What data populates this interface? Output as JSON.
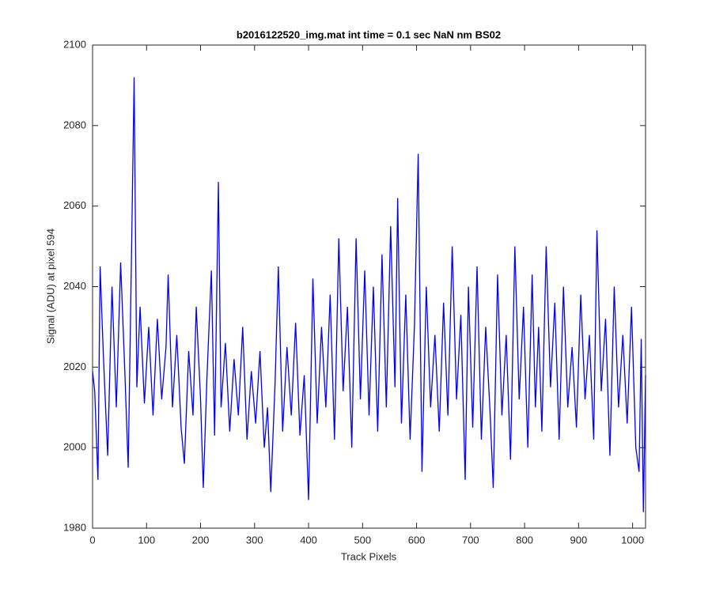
{
  "chart_data": {
    "type": "line",
    "title": "b2016122520_img.mat int time = 0.1 sec  NaN nm BS02",
    "xlabel": "Track Pixels",
    "ylabel": "Signal (ADU) at pixel 594",
    "xlim": [
      0,
      1024
    ],
    "ylim": [
      1980,
      2100
    ],
    "xticks": [
      0,
      100,
      200,
      300,
      400,
      500,
      600,
      700,
      800,
      900,
      1000
    ],
    "yticks": [
      1980,
      2000,
      2020,
      2040,
      2060,
      2080,
      2100
    ],
    "x": [
      0,
      4,
      10,
      14,
      20,
      28,
      36,
      44,
      52,
      60,
      66,
      72,
      77,
      82,
      88,
      96,
      104,
      112,
      120,
      128,
      136,
      140,
      148,
      156,
      164,
      170,
      178,
      186,
      192,
      200,
      205,
      212,
      220,
      226,
      233,
      238,
      246,
      254,
      262,
      270,
      278,
      286,
      294,
      302,
      310,
      318,
      324,
      330,
      338,
      344,
      352,
      360,
      368,
      376,
      384,
      392,
      400,
      408,
      416,
      424,
      432,
      440,
      448,
      456,
      464,
      472,
      480,
      488,
      496,
      504,
      512,
      520,
      528,
      536,
      544,
      552,
      560,
      565,
      572,
      580,
      588,
      596,
      603,
      610,
      618,
      626,
      634,
      642,
      650,
      658,
      666,
      674,
      682,
      690,
      696,
      704,
      712,
      720,
      728,
      736,
      742,
      750,
      758,
      766,
      774,
      782,
      790,
      798,
      806,
      814,
      820,
      826,
      832,
      840,
      848,
      856,
      864,
      872,
      880,
      888,
      896,
      904,
      912,
      920,
      928,
      934,
      942,
      950,
      958,
      966,
      974,
      982,
      990,
      998,
      1006,
      1012,
      1016,
      1020,
      1024
    ],
    "series": [
      {
        "color": "#0000ff",
        "values": [
          2019,
          2014,
          1992,
          2045,
          2023,
          1998,
          2040,
          2010,
          2046,
          2018,
          1995,
          2047,
          2092,
          2015,
          2035,
          2011,
          2030,
          2008,
          2032,
          2012,
          2025,
          2043,
          2010,
          2028,
          2005,
          1996,
          2024,
          2008,
          2035,
          2012,
          1990,
          2018,
          2044,
          2003,
          2066,
          2010,
          2026,
          2004,
          2022,
          2008,
          2030,
          2002,
          2019,
          2006,
          2024,
          2000,
          2010,
          1989,
          2016,
          2045,
          2004,
          2025,
          2008,
          2031,
          2003,
          2018,
          1987,
          2042,
          2006,
          2030,
          2010,
          2038,
          2002,
          2052,
          2014,
          2035,
          2000,
          2052,
          2012,
          2044,
          2008,
          2040,
          2004,
          2048,
          2010,
          2055,
          2015,
          2062,
          2006,
          2038,
          2002,
          2030,
          2073,
          1994,
          2040,
          2010,
          2028,
          2004,
          2036,
          2008,
          2050,
          2012,
          2033,
          1992,
          2040,
          2005,
          2045,
          2002,
          2030,
          2009,
          1990,
          2043,
          2008,
          2028,
          1997,
          2050,
          2012,
          2035,
          2000,
          2043,
          2010,
          2030,
          2004,
          2050,
          2015,
          2036,
          2002,
          2040,
          2010,
          2025,
          2005,
          2038,
          2012,
          2028,
          2002,
          2054,
          2014,
          2032,
          1998,
          2040,
          2010,
          2028,
          2006,
          2035,
          2000,
          1994,
          2027,
          1984,
          2018
        ]
      }
    ]
  }
}
